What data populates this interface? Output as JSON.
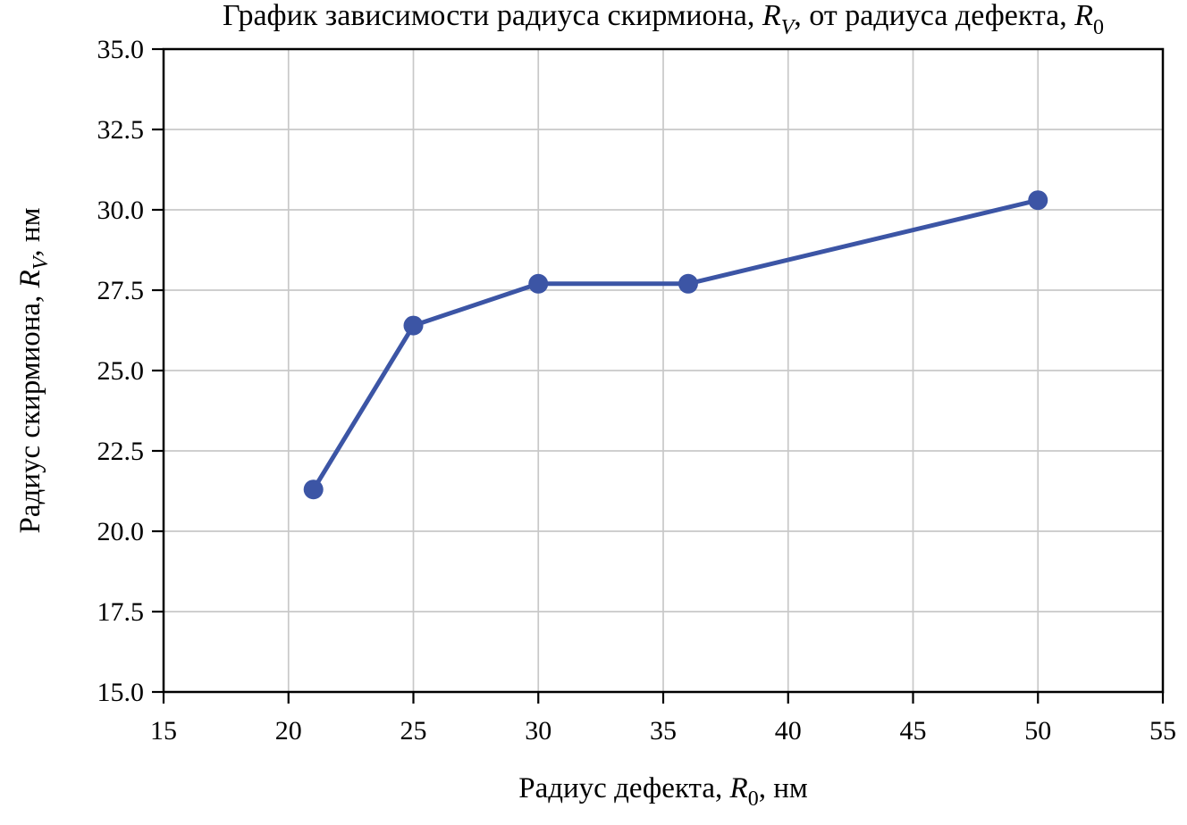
{
  "chart_data": {
    "type": "line",
    "title_plain": "График зависимости радиуса скирмиона, R_V, от радиуса дефекта, R_0",
    "title_segments": [
      {
        "t": "График зависимости радиуса скирмиона, "
      },
      {
        "t": "R",
        "italic": true
      },
      {
        "t": "V",
        "sub": true,
        "italic": true
      },
      {
        "t": ", от радиуса дефекта, "
      },
      {
        "t": "R",
        "italic": true
      },
      {
        "t": "0",
        "sub": true
      }
    ],
    "xlabel_plain": "Радиус дефекта, R_0, нм",
    "xlabel_segments": [
      {
        "t": "Радиус дефекта, "
      },
      {
        "t": "R",
        "italic": true
      },
      {
        "t": "0",
        "sub": true
      },
      {
        "t": ", нм"
      }
    ],
    "ylabel_plain": "Радиус скирмиона, R_V, нм",
    "ylabel_segments": [
      {
        "t": "Радиус скирмиона, "
      },
      {
        "t": "R",
        "italic": true
      },
      {
        "t": "V",
        "sub": true,
        "italic": true
      },
      {
        "t": ", нм"
      }
    ],
    "x": [
      21,
      25,
      30,
      36,
      50
    ],
    "y": [
      21.3,
      26.4,
      27.7,
      27.7,
      30.3
    ],
    "xlim": [
      15,
      55
    ],
    "ylim": [
      15.0,
      35.0
    ],
    "xticks": [
      15,
      20,
      25,
      30,
      35,
      40,
      45,
      50,
      55
    ],
    "xtick_labels": [
      "15",
      "20",
      "25",
      "30",
      "35",
      "40",
      "45",
      "50",
      "55"
    ],
    "yticks": [
      15.0,
      17.5,
      20.0,
      22.5,
      25.0,
      27.5,
      30.0,
      32.5,
      35.0
    ],
    "ytick_labels": [
      "15.0",
      "17.5",
      "20.0",
      "22.5",
      "25.0",
      "27.5",
      "30.0",
      "32.5",
      "35.0"
    ],
    "grid": true,
    "legend": "none",
    "marker": "circle",
    "style": {
      "line_color": "#3C55A5",
      "marker_color": "#3C55A5",
      "grid_color": "#C8C8C8",
      "axis_color": "#000000",
      "text_color": "#000000",
      "background": "#FFFFFF"
    }
  }
}
